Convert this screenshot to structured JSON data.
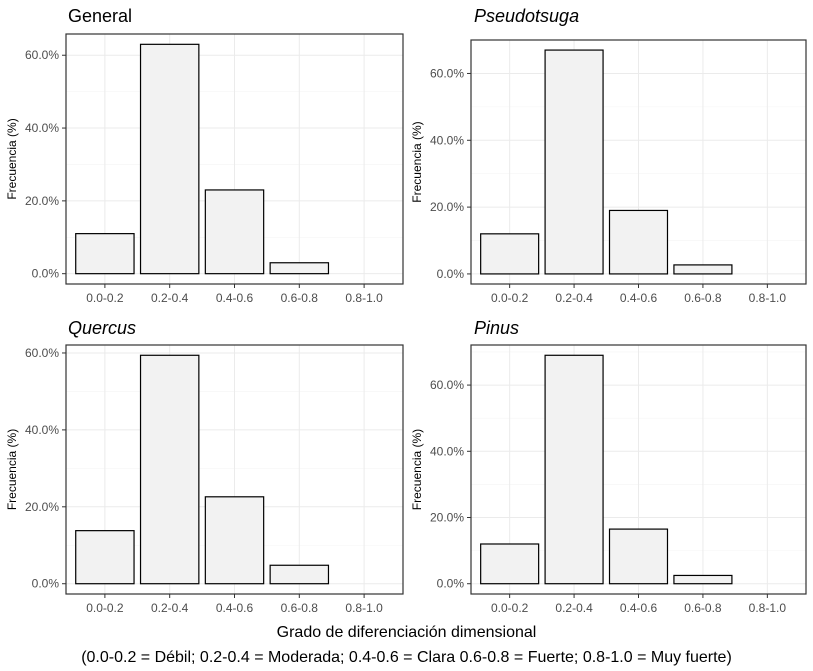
{
  "chart_data": [
    {
      "type": "bar",
      "title": "General",
      "title_italic": false,
      "categories": [
        "0.0-0.2",
        "0.2-0.4",
        "0.4-0.6",
        "0.6-0.8",
        "0.8-1.0"
      ],
      "values": [
        11.0,
        63.0,
        23.0,
        3.0,
        0.0
      ],
      "ylabel": "Frecuencia (%)",
      "ylim": [
        0,
        63
      ],
      "yticks": [
        0,
        20,
        40,
        60
      ],
      "ytick_labels": [
        "0.0%",
        "20.0%",
        "40.0%",
        "60.0%"
      ],
      "grid": true
    },
    {
      "type": "bar",
      "title": "Pseudotsuga",
      "title_italic": true,
      "categories": [
        "0.0-0.2",
        "0.2-0.4",
        "0.4-0.6",
        "0.6-0.8",
        "0.8-1.0"
      ],
      "values": [
        12.0,
        67.0,
        19.0,
        2.7,
        0.0
      ],
      "ylabel": "Frecuencia (%)",
      "ylim": [
        0,
        67
      ],
      "yticks": [
        0,
        20,
        40,
        60
      ],
      "ytick_labels": [
        "0.0%",
        "20.0%",
        "40.0%",
        "60.0%"
      ],
      "grid": true
    },
    {
      "type": "bar",
      "title": "Quercus",
      "title_italic": true,
      "categories": [
        "0.0-0.2",
        "0.2-0.4",
        "0.4-0.6",
        "0.6-0.8",
        "0.8-1.0"
      ],
      "values": [
        13.8,
        59.4,
        22.6,
        4.8,
        0.0
      ],
      "ylabel": "Frecuencia (%)",
      "ylim": [
        0,
        59.4
      ],
      "yticks": [
        0,
        20,
        40,
        60
      ],
      "ytick_labels": [
        "0.0%",
        "20.0%",
        "40.0%",
        "60.0%"
      ],
      "grid": true
    },
    {
      "type": "bar",
      "title": "Pinus",
      "title_italic": true,
      "categories": [
        "0.0-0.2",
        "0.2-0.4",
        "0.4-0.6",
        "0.6-0.8",
        "0.8-1.0"
      ],
      "values": [
        12.0,
        69.0,
        16.5,
        2.5,
        0.0
      ],
      "ylabel": "Frecuencia (%)",
      "ylim": [
        0,
        69
      ],
      "yticks": [
        0,
        20,
        40,
        60
      ],
      "ytick_labels": [
        "0.0%",
        "20.0%",
        "40.0%",
        "60.0%"
      ],
      "grid": true
    }
  ],
  "caption": {
    "xlabel": "Grado de diferenciación dimensional",
    "legend": "(0.0-0.2 = Débil; 0.2-0.4 = Moderada; 0.4-0.6 = Clara 0.6-0.8 = Fuerte; 0.8-1.0 = Muy fuerte)"
  },
  "colors": {
    "bar_fill": "#f2f2f2",
    "bar_stroke": "#000000",
    "panel_background": "#ffffff",
    "grid": "#ebebeb",
    "axis_text": "#4d4d4d"
  }
}
